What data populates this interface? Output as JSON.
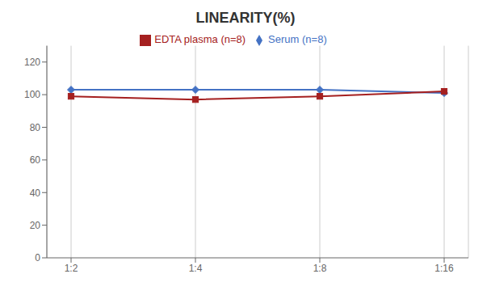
{
  "chart_data": {
    "type": "line",
    "title": "LINEARITY(%)",
    "categories": [
      "1:2",
      "1:4",
      "1:8",
      "1:16"
    ],
    "series": [
      {
        "name": "Serum (n=8)",
        "color": "#4472C4",
        "values": [
          103,
          103,
          103,
          101
        ],
        "marker": "diamond"
      },
      {
        "name": "EDTA plasma (n=8)",
        "color": "#A52020",
        "values": [
          99,
          97,
          99,
          102
        ],
        "marker": "square"
      }
    ],
    "ylim": [
      0,
      130
    ],
    "yticks": [
      0,
      20,
      40,
      60,
      80,
      100,
      120
    ],
    "grid": true,
    "legend": "top"
  }
}
